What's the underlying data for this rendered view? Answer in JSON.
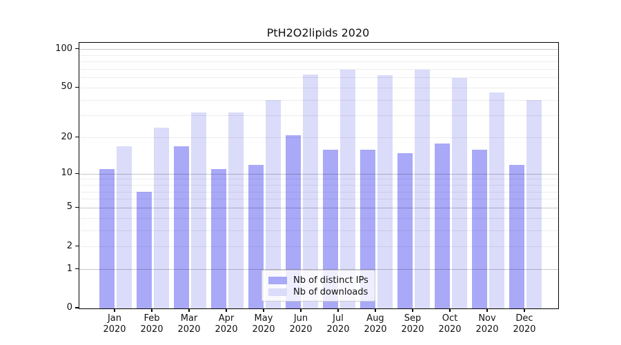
{
  "figure": {
    "title": "PtH2O2lipids 2020",
    "background": "#ffffff"
  },
  "chart_data": {
    "type": "bar",
    "title": "PtH2O2lipids 2020",
    "categories": [
      "Jan 2020",
      "Feb 2020",
      "Mar 2020",
      "Apr 2020",
      "May 2020",
      "Jun 2020",
      "Jul 2020",
      "Aug 2020",
      "Sep 2020",
      "Oct 2020",
      "Nov 2020",
      "Dec 2020"
    ],
    "series": [
      {
        "name": "Nb of distinct IPs",
        "color": "#a9a9f8",
        "values": [
          11,
          7,
          17,
          11,
          12,
          21,
          16,
          16,
          15,
          18,
          16,
          12
        ]
      },
      {
        "name": "Nb of downloads",
        "color": "#dbdbfa",
        "values": [
          17,
          24,
          32,
          32,
          40,
          64,
          70,
          63,
          70,
          60,
          46,
          40
        ]
      }
    ],
    "xlabel": "",
    "ylabel": "",
    "y_scale": "log1p",
    "ylim": [
      0,
      113
    ],
    "y_ticks": [
      0,
      1,
      2,
      5,
      10,
      20,
      50,
      100
    ],
    "y_minor_gridlines": [
      2,
      3,
      4,
      6,
      7,
      8,
      9,
      20,
      30,
      40,
      50,
      60,
      70,
      80,
      90
    ],
    "y_major_gridlines": [
      1,
      5,
      10,
      100
    ],
    "grid": "both",
    "legend": {
      "position": "lower center",
      "entries": [
        "Nb of distinct IPs",
        "Nb of downloads"
      ]
    }
  },
  "colors": {
    "axis": "#000000",
    "text": "#111111",
    "grid_minor": "rgba(0,0,0,0.07)",
    "grid_major": "rgba(0,0,0,0.22)",
    "legend_border": "#cccccc",
    "legend_background": "rgba(255,255,255,0.8)"
  }
}
